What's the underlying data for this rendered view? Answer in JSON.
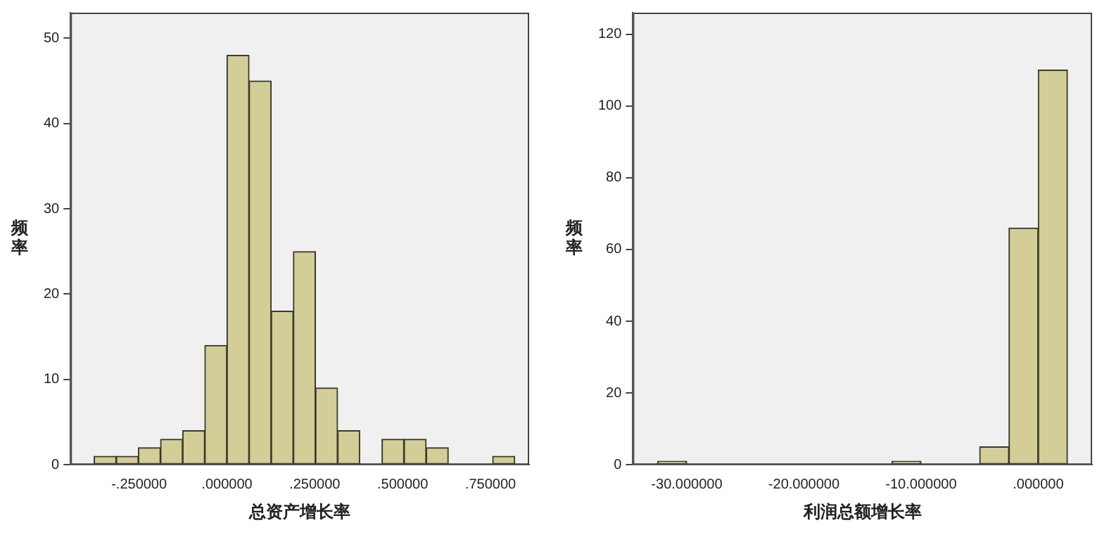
{
  "chart_data": [
    {
      "type": "histogram",
      "xlabel": "总资产增长率",
      "ylabel": "频率",
      "color": "#d3ce97",
      "bins": [
        -0.378,
        -0.315,
        -0.252,
        -0.189,
        -0.126,
        -0.063,
        0,
        0.063,
        0.126,
        0.189,
        0.252,
        0.315,
        0.378,
        0.441,
        0.504,
        0.567,
        0.63,
        0.693,
        0.756,
        0.819
      ],
      "values": [
        1,
        1,
        2,
        3,
        4,
        14,
        48,
        45,
        18,
        25,
        9,
        4,
        0,
        3,
        3,
        2,
        0,
        0,
        1
      ],
      "xlim": [
        -0.445,
        0.86
      ],
      "xticks": [
        {
          "value": -0.25,
          "label": "-.250000"
        },
        {
          "value": 0,
          "label": ".000000"
        },
        {
          "value": 0.25,
          "label": ".250000"
        },
        {
          "value": 0.5,
          "label": ".500000"
        },
        {
          "value": 0.75,
          "label": ".750000"
        }
      ],
      "ylim": [
        0,
        53
      ],
      "yticks": [
        0,
        10,
        20,
        30,
        40,
        50
      ],
      "grid": false,
      "legend": false
    },
    {
      "type": "histogram",
      "xlabel": "利润总额增长率",
      "ylabel": "频率",
      "color": "#d3ce97",
      "bins": [
        -32.5,
        -30,
        -27.5,
        -25,
        -22.5,
        -20,
        -17.5,
        -15,
        -12.5,
        -10,
        -7.5,
        -5,
        -2.5,
        0,
        2.5
      ],
      "values": [
        1,
        0,
        0,
        0,
        0,
        0,
        0,
        0,
        1,
        0,
        0,
        5,
        66,
        110
      ],
      "xlim": [
        -34.6,
        4.6
      ],
      "xticks": [
        {
          "value": -30,
          "label": "-30.000000"
        },
        {
          "value": -20,
          "label": "-20.000000"
        },
        {
          "value": -10,
          "label": "-10.000000"
        },
        {
          "value": 0,
          "label": ".000000"
        }
      ],
      "ylim": [
        0,
        126
      ],
      "yticks": [
        0,
        20,
        40,
        60,
        80,
        100,
        120
      ],
      "grid": false,
      "legend": false
    }
  ]
}
